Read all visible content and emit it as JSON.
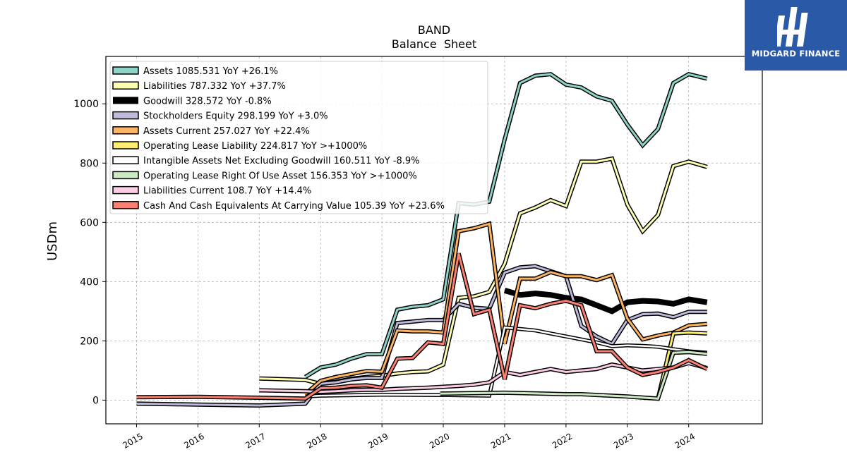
{
  "brand": {
    "name": "MIDGARD FINANCE",
    "icon": "midgard-logo-icon",
    "color": "#2a59a8"
  },
  "chart_data": {
    "type": "line",
    "title": "BAND",
    "subtitle": "Balance  Sheet",
    "ylabel": "USDm",
    "xlabel": "",
    "xlim": [
      2014.5,
      2025.2
    ],
    "ylim": [
      -80,
      1160
    ],
    "xticks": [
      2015,
      2016,
      2017,
      2018,
      2019,
      2020,
      2021,
      2022,
      2023,
      2024
    ],
    "xtick_labels": [
      "2015",
      "2016",
      "2017",
      "2018",
      "2019",
      "2020",
      "2021",
      "2022",
      "2023",
      "2024"
    ],
    "yticks": [
      0,
      200,
      400,
      600,
      800,
      1000
    ],
    "ytick_labels": [
      "0",
      "200",
      "400",
      "600",
      "800",
      "1000"
    ],
    "grid": true,
    "legend_position": "top-left",
    "series": [
      {
        "name": "Assets",
        "label": "Assets  1085.531 YoY +26.1%",
        "color": "#8dd3c7",
        "width": 3,
        "points": [
          [
            2017.75,
            78
          ],
          [
            2018.0,
            110
          ],
          [
            2018.25,
            120
          ],
          [
            2018.5,
            140
          ],
          [
            2018.75,
            155
          ],
          [
            2019.0,
            155
          ],
          [
            2019.25,
            305
          ],
          [
            2019.5,
            315
          ],
          [
            2019.75,
            320
          ],
          [
            2020.0,
            340
          ],
          [
            2020.25,
            665
          ],
          [
            2020.5,
            660
          ],
          [
            2020.75,
            670
          ],
          [
            2021.0,
            880
          ],
          [
            2021.25,
            1070
          ],
          [
            2021.5,
            1095
          ],
          [
            2021.75,
            1100
          ],
          [
            2022.0,
            1065
          ],
          [
            2022.25,
            1055
          ],
          [
            2022.5,
            1025
          ],
          [
            2022.75,
            1010
          ],
          [
            2023.0,
            930
          ],
          [
            2023.25,
            860
          ],
          [
            2023.5,
            915
          ],
          [
            2023.75,
            1070
          ],
          [
            2024.0,
            1100
          ],
          [
            2024.3,
            1085
          ]
        ]
      },
      {
        "name": "Liabilities",
        "label": "Liabilities  787.332 YoY +37.7%",
        "color": "#ffffb3",
        "width": 3,
        "points": [
          [
            2017.0,
            73
          ],
          [
            2017.75,
            68
          ],
          [
            2018.0,
            55
          ],
          [
            2018.25,
            62
          ],
          [
            2018.5,
            72
          ],
          [
            2018.75,
            78
          ],
          [
            2019.0,
            82
          ],
          [
            2019.25,
            90
          ],
          [
            2019.5,
            95
          ],
          [
            2019.75,
            97
          ],
          [
            2020.0,
            120
          ],
          [
            2020.25,
            345
          ],
          [
            2020.5,
            350
          ],
          [
            2020.75,
            365
          ],
          [
            2021.0,
            460
          ],
          [
            2021.25,
            630
          ],
          [
            2021.5,
            650
          ],
          [
            2021.75,
            675
          ],
          [
            2022.0,
            655
          ],
          [
            2022.25,
            805
          ],
          [
            2022.5,
            805
          ],
          [
            2022.75,
            815
          ],
          [
            2023.0,
            660
          ],
          [
            2023.25,
            570
          ],
          [
            2023.5,
            625
          ],
          [
            2023.75,
            790
          ],
          [
            2024.0,
            805
          ],
          [
            2024.3,
            787
          ]
        ]
      },
      {
        "name": "Goodwill",
        "label": "Goodwill  328.572 YoY -0.8%",
        "color": "#000000",
        "width": 8,
        "noBorder": true,
        "points": [
          [
            2021.0,
            370
          ],
          [
            2021.25,
            355
          ],
          [
            2021.5,
            360
          ],
          [
            2021.75,
            355
          ],
          [
            2022.0,
            345
          ],
          [
            2022.25,
            340
          ],
          [
            2022.5,
            320
          ],
          [
            2022.75,
            300
          ],
          [
            2023.0,
            330
          ],
          [
            2023.25,
            335
          ],
          [
            2023.5,
            333
          ],
          [
            2023.75,
            325
          ],
          [
            2024.0,
            340
          ],
          [
            2024.3,
            330
          ]
        ]
      },
      {
        "name": "Stockholders Equity",
        "label": "Stockholders Equity  298.199 YoY +3.0%",
        "color": "#bebada",
        "width": 3,
        "points": [
          [
            2015.0,
            -12
          ],
          [
            2016.0,
            -15
          ],
          [
            2017.0,
            -18
          ],
          [
            2017.75,
            -12
          ],
          [
            2018.0,
            55
          ],
          [
            2018.25,
            60
          ],
          [
            2018.5,
            70
          ],
          [
            2018.75,
            75
          ],
          [
            2019.0,
            75
          ],
          [
            2019.25,
            260
          ],
          [
            2019.5,
            265
          ],
          [
            2019.75,
            270
          ],
          [
            2020.0,
            270
          ],
          [
            2020.25,
            325
          ],
          [
            2020.5,
            312
          ],
          [
            2020.75,
            308
          ],
          [
            2021.0,
            430
          ],
          [
            2021.25,
            448
          ],
          [
            2021.5,
            452
          ],
          [
            2021.75,
            435
          ],
          [
            2022.0,
            418
          ],
          [
            2022.25,
            250
          ],
          [
            2022.5,
            215
          ],
          [
            2022.75,
            190
          ],
          [
            2023.0,
            270
          ],
          [
            2023.25,
            290
          ],
          [
            2023.5,
            292
          ],
          [
            2023.75,
            280
          ],
          [
            2024.0,
            298
          ],
          [
            2024.3,
            298
          ]
        ]
      },
      {
        "name": "Assets Current",
        "label": "Assets Current  257.027 YoY +22.4%",
        "color": "#fdb462",
        "width": 3,
        "points": [
          [
            2017.75,
            20
          ],
          [
            2018.0,
            65
          ],
          [
            2018.25,
            78
          ],
          [
            2018.5,
            88
          ],
          [
            2018.75,
            98
          ],
          [
            2019.0,
            96
          ],
          [
            2019.25,
            235
          ],
          [
            2019.5,
            232
          ],
          [
            2019.75,
            232
          ],
          [
            2020.0,
            228
          ],
          [
            2020.25,
            570
          ],
          [
            2020.5,
            580
          ],
          [
            2020.75,
            595
          ],
          [
            2021.0,
            190
          ],
          [
            2021.25,
            410
          ],
          [
            2021.5,
            410
          ],
          [
            2021.75,
            432
          ],
          [
            2022.0,
            418
          ],
          [
            2022.25,
            418
          ],
          [
            2022.5,
            405
          ],
          [
            2022.75,
            422
          ],
          [
            2023.0,
            275
          ],
          [
            2023.25,
            205
          ],
          [
            2023.5,
            218
          ],
          [
            2023.75,
            228
          ],
          [
            2024.0,
            252
          ],
          [
            2024.3,
            257
          ]
        ]
      },
      {
        "name": "Operating Lease Liability",
        "label": "Operating Lease Liability  224.817 YoY >+1000%",
        "color": "#ffed6f",
        "width": 3,
        "points": [
          [
            2023.5,
            5
          ],
          [
            2023.75,
            225
          ],
          [
            2024.0,
            228
          ],
          [
            2024.3,
            225
          ]
        ]
      },
      {
        "name": "Intangible Assets Net Excluding Goodwill",
        "label": "Intangible Assets Net Excluding Goodwill  160.511 YoY -8.9%",
        "color": "#ffffff",
        "width": 2.5,
        "points": [
          [
            2017.75,
            12
          ],
          [
            2018.0,
            15
          ],
          [
            2019.0,
            18
          ],
          [
            2020.0,
            17
          ],
          [
            2020.75,
            15
          ],
          [
            2021.0,
            245
          ],
          [
            2021.25,
            240
          ],
          [
            2021.5,
            235
          ],
          [
            2021.75,
            225
          ],
          [
            2022.0,
            215
          ],
          [
            2022.25,
            205
          ],
          [
            2022.5,
            195
          ],
          [
            2022.75,
            182
          ],
          [
            2023.0,
            185
          ],
          [
            2023.25,
            183
          ],
          [
            2023.5,
            180
          ],
          [
            2023.75,
            172
          ],
          [
            2024.0,
            165
          ],
          [
            2024.3,
            160
          ]
        ]
      },
      {
        "name": "Operating Lease Right Of Use Asset",
        "label": "Operating Lease Right Of Use Asset  156.353 YoY >+1000%",
        "color": "#ccebc5",
        "width": 3,
        "points": [
          [
            2019.95,
            22
          ],
          [
            2021.0,
            25
          ],
          [
            2022.0,
            20
          ],
          [
            2022.25,
            20
          ],
          [
            2023.0,
            12
          ],
          [
            2023.5,
            5
          ],
          [
            2023.75,
            160
          ],
          [
            2024.0,
            162
          ],
          [
            2024.3,
            156
          ]
        ]
      },
      {
        "name": "Liabilities Current",
        "label": "Liabilities Current  108.7 YoY +14.4%",
        "color": "#fccde5",
        "width": 3,
        "points": [
          [
            2017.0,
            33
          ],
          [
            2017.75,
            30
          ],
          [
            2018.0,
            28
          ],
          [
            2018.25,
            30
          ],
          [
            2018.5,
            33
          ],
          [
            2018.75,
            35
          ],
          [
            2019.0,
            35
          ],
          [
            2019.25,
            38
          ],
          [
            2019.5,
            40
          ],
          [
            2019.75,
            42
          ],
          [
            2020.0,
            45
          ],
          [
            2020.25,
            48
          ],
          [
            2020.5,
            52
          ],
          [
            2020.75,
            60
          ],
          [
            2021.0,
            95
          ],
          [
            2021.25,
            85
          ],
          [
            2021.5,
            95
          ],
          [
            2021.75,
            105
          ],
          [
            2022.0,
            95
          ],
          [
            2022.25,
            100
          ],
          [
            2022.5,
            105
          ],
          [
            2022.75,
            120
          ],
          [
            2023.0,
            110
          ],
          [
            2023.25,
            100
          ],
          [
            2023.5,
            105
          ],
          [
            2023.75,
            110
          ],
          [
            2024.0,
            125
          ],
          [
            2024.3,
            108
          ]
        ]
      },
      {
        "name": "Cash And Cash Equivalents At Carrying Value",
        "label": "Cash And Cash Equivalents At Carrying Value  105.39 YoY +23.6%",
        "color": "#fb8072",
        "width": 3,
        "points": [
          [
            2015.0,
            10
          ],
          [
            2016.0,
            11
          ],
          [
            2017.0,
            8
          ],
          [
            2017.75,
            5
          ],
          [
            2018.0,
            40
          ],
          [
            2018.25,
            42
          ],
          [
            2018.5,
            48
          ],
          [
            2018.75,
            50
          ],
          [
            2019.0,
            42
          ],
          [
            2019.25,
            140
          ],
          [
            2019.5,
            142
          ],
          [
            2019.75,
            195
          ],
          [
            2020.0,
            190
          ],
          [
            2020.25,
            495
          ],
          [
            2020.5,
            290
          ],
          [
            2020.75,
            305
          ],
          [
            2021.0,
            70
          ],
          [
            2021.25,
            320
          ],
          [
            2021.5,
            310
          ],
          [
            2021.75,
            325
          ],
          [
            2022.0,
            335
          ],
          [
            2022.25,
            320
          ],
          [
            2022.5,
            165
          ],
          [
            2022.75,
            165
          ],
          [
            2023.0,
            110
          ],
          [
            2023.25,
            85
          ],
          [
            2023.5,
            95
          ],
          [
            2023.75,
            110
          ],
          [
            2024.0,
            135
          ],
          [
            2024.3,
            105
          ]
        ]
      }
    ]
  }
}
